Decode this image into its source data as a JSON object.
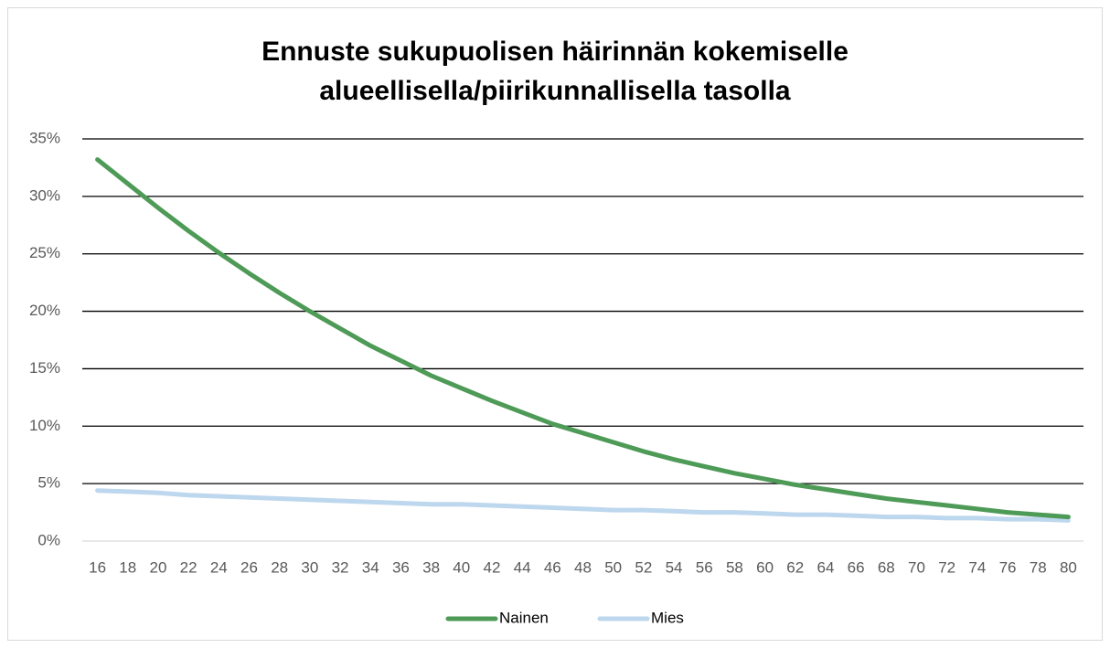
{
  "chart_data": {
    "type": "line",
    "title": [
      "Ennuste sukupuolisen häirinnän kokemiselle",
      "alueellisella/piirikunnallisella tasolla"
    ],
    "categories": [
      "16",
      "18",
      "20",
      "22",
      "24",
      "26",
      "28",
      "30",
      "32",
      "34",
      "36",
      "38",
      "40",
      "42",
      "44",
      "46",
      "48",
      "50",
      "52",
      "54",
      "56",
      "58",
      "60",
      "62",
      "64",
      "66",
      "68",
      "70",
      "72",
      "74",
      "76",
      "78",
      "80"
    ],
    "series": [
      {
        "name": "Nainen",
        "color": "#4e9a57",
        "values": [
          33.2,
          31.1,
          29.0,
          27.0,
          25.1,
          23.3,
          21.6,
          20.0,
          18.5,
          17.0,
          15.7,
          14.4,
          13.3,
          12.2,
          11.2,
          10.2,
          9.4,
          8.6,
          7.8,
          7.1,
          6.5,
          5.9,
          5.4,
          4.9,
          4.5,
          4.1,
          3.7,
          3.4,
          3.1,
          2.8,
          2.5,
          2.3,
          2.1
        ]
      },
      {
        "name": "Mies",
        "color": "#bdd7ee",
        "values": [
          4.4,
          4.3,
          4.2,
          4.0,
          3.9,
          3.8,
          3.7,
          3.6,
          3.5,
          3.4,
          3.3,
          3.2,
          3.2,
          3.1,
          3.0,
          2.9,
          2.8,
          2.7,
          2.7,
          2.6,
          2.5,
          2.5,
          2.4,
          2.3,
          2.3,
          2.2,
          2.1,
          2.1,
          2.0,
          2.0,
          1.9,
          1.9,
          1.8
        ]
      }
    ],
    "ylim": [
      0,
      35
    ],
    "yticks": [
      {
        "value": 0,
        "label": "0%"
      },
      {
        "value": 5,
        "label": "5%"
      },
      {
        "value": 10,
        "label": "10%"
      },
      {
        "value": 15,
        "label": "15%"
      },
      {
        "value": 20,
        "label": "20%"
      },
      {
        "value": 25,
        "label": "25%"
      },
      {
        "value": 30,
        "label": "30%"
      },
      {
        "value": 35,
        "label": "35%"
      }
    ],
    "grid": true,
    "legend": "bottom"
  }
}
